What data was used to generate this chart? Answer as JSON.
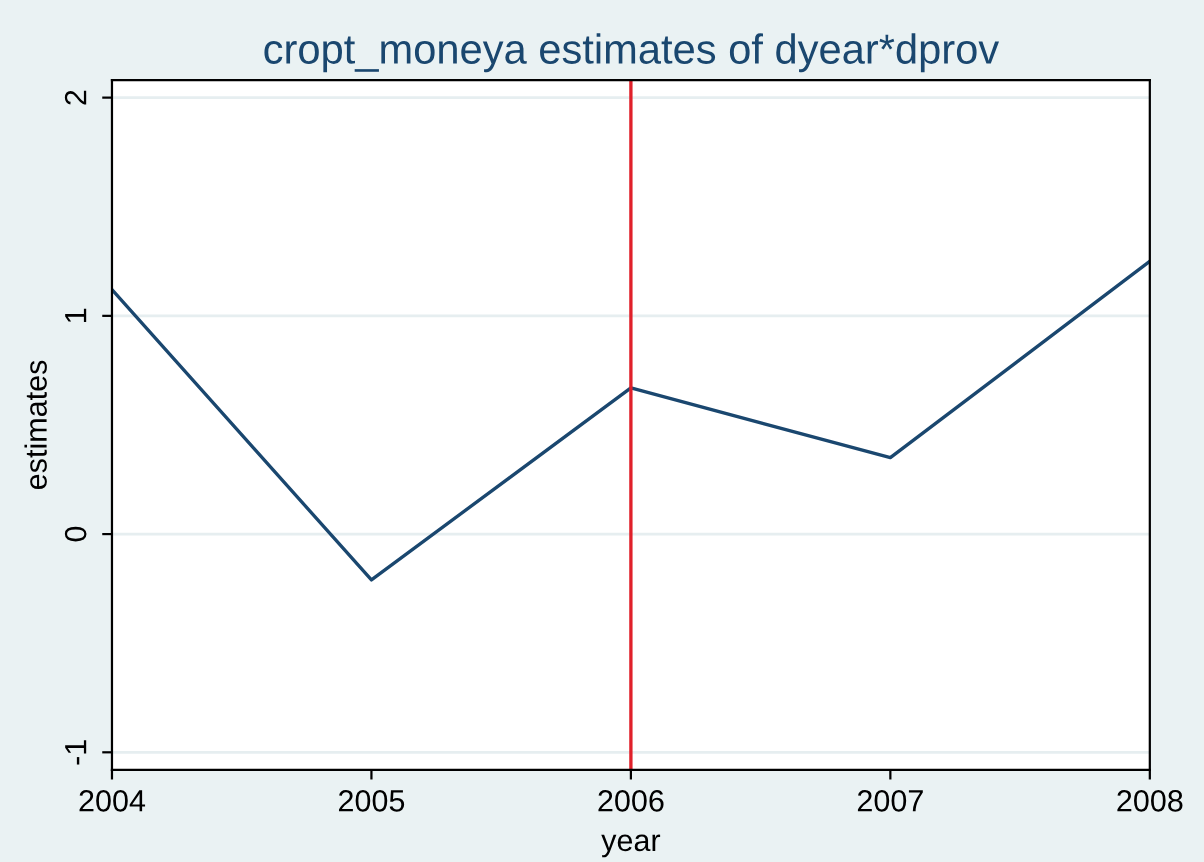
{
  "chart_data": {
    "type": "line",
    "title": "cropt_moneya estimates of dyear*dprov",
    "xlabel": "year",
    "ylabel": "estimates",
    "x": [
      2004,
      2005,
      2006,
      2007,
      2008
    ],
    "series": [
      {
        "color": "#1a476f",
        "values": [
          1.12,
          -0.21,
          0.67,
          0.35,
          1.25
        ]
      }
    ],
    "xlim": [
      2004,
      2008
    ],
    "xticks": [
      2004,
      2005,
      2006,
      2007,
      2008
    ],
    "ylim": [
      -1.08,
      2.08
    ],
    "yticks": [
      -1,
      0,
      1,
      2
    ],
    "ref_lines": [
      {
        "axis": "x",
        "value": 2006,
        "color": "#e0202a"
      }
    ],
    "grid": "y",
    "legend": false,
    "marker": "none",
    "line_style": "solid"
  }
}
